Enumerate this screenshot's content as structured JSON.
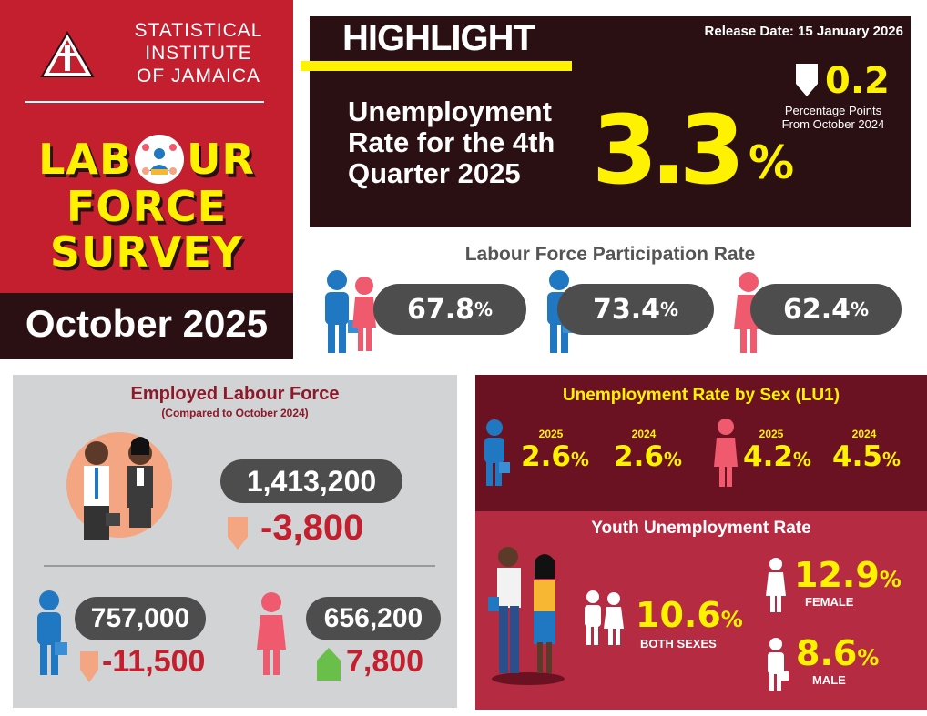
{
  "institute": {
    "line1": "STATISTICAL",
    "line2": "INSTITUTE",
    "line3": "OF JAMAICA"
  },
  "survey_title": {
    "line1_a": "LAB",
    "line1_b": "UR",
    "line2": "FORCE",
    "line3": "SURVEY"
  },
  "period": "October 2025",
  "highlight": {
    "label": "HIGHLIGHT",
    "release": "Release Date: 15 January 2026",
    "desc_line1": "Unemployment",
    "desc_line2": "Rate for the 4th",
    "desc_line3": "Quarter 2025",
    "rate": "3.3",
    "rate_unit": "%",
    "change": "0.2",
    "change_direction": "down",
    "change_note_line1": "Percentage Points",
    "change_note_line2": "From October 2024"
  },
  "participation": {
    "title": "Labour Force Participation Rate",
    "both": "67.8",
    "male": "73.4",
    "female": "62.4",
    "unit": "%"
  },
  "employed": {
    "title": "Employed Labour Force",
    "subtitle": "(Compared to October 2024)",
    "total": "1,413,200",
    "total_change": "-3,800",
    "male": "757,000",
    "male_change": "-11,500",
    "female": "656,200",
    "female_change": "7,800"
  },
  "by_sex": {
    "title": "Unemployment Rate by Sex (LU1)",
    "male_2025_year": "2025",
    "male_2025": "2.6",
    "male_2024_year": "2024",
    "male_2024": "2.6",
    "female_2025_year": "2025",
    "female_2025": "4.2",
    "female_2024_year": "2024",
    "female_2024": "4.5",
    "unit": "%"
  },
  "youth": {
    "title": "Youth Unemployment Rate",
    "both": "10.6",
    "both_label": "BOTH SEXES",
    "female": "12.9",
    "female_label": "FEMALE",
    "male": "8.6",
    "male_label": "MALE",
    "unit": "%"
  },
  "colors": {
    "brand_red": "#c41f2f",
    "dark_maroon": "#2b1013",
    "highlight_yellow": "#fff200",
    "male_blue": "#1f78c1",
    "female_pink": "#ef5a6f",
    "decrease_salmon": "#f4a582",
    "increase_green": "#6abf4b"
  }
}
